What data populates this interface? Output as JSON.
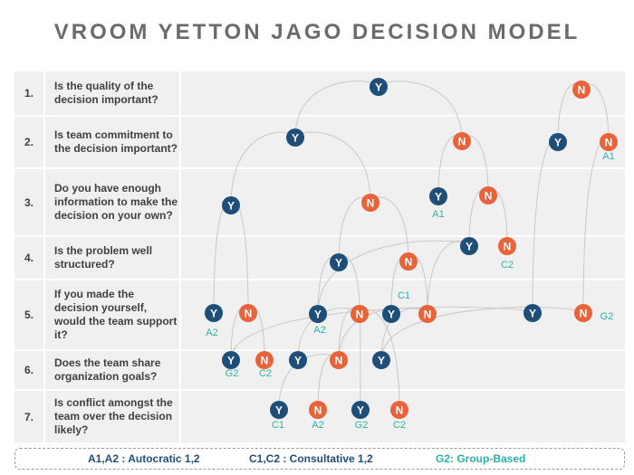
{
  "title": "VROOM YETTON JAGO DECISION MODEL",
  "questions": [
    {
      "num": "1.",
      "text": "Is the quality of the decision important?"
    },
    {
      "num": "2.",
      "text": "Is team commitment to the decision important?"
    },
    {
      "num": "3.",
      "text": "Do you have enough information to make the decision on your own?"
    },
    {
      "num": "4.",
      "text": "Is the problem well structured?"
    },
    {
      "num": "5.",
      "text": "If you made the decision yourself, would the team support it?"
    },
    {
      "num": "6.",
      "text": "Does the team share organization goals?"
    },
    {
      "num": "7.",
      "text": "Is conflict amongst the team over the decision likely?"
    }
  ],
  "node_labels": {
    "yes": "Y",
    "no": "N"
  },
  "outcomes": {
    "r2a": "A1",
    "r3a": "A1",
    "r4a": "C2",
    "r5a": "C1",
    "r5b": "A2",
    "r5c": "A2",
    "r5d": "G2",
    "r6a": "G2",
    "r6b": "C2",
    "r7a": "C1",
    "r7b": "A2",
    "r7c": "G2",
    "r7d": "C2"
  },
  "legend": {
    "autocratic": "A1,A2 : Autocratic  1,2",
    "consultative": "C1,C2 : Consultative  1,2",
    "group": "G2: Group-Based"
  },
  "colors": {
    "yes": "#1f4e79",
    "no": "#e8633a",
    "outcome": "#2ab3a6",
    "title": "#6b6b6b",
    "panel": "#f0f0f0",
    "line": "#c8c8c8"
  }
}
